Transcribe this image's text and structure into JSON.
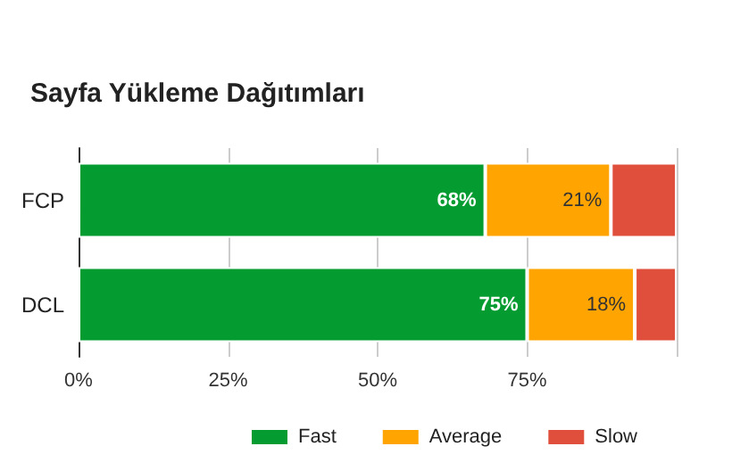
{
  "chart_data": {
    "type": "bar",
    "orientation": "horizontal",
    "stacked": true,
    "title": "Sayfa Yükleme Dağıtımları",
    "categories": [
      "FCP",
      "DCL"
    ],
    "series": [
      {
        "name": "Fast",
        "color": "#049c31",
        "values": [
          68,
          75
        ],
        "value_labels": [
          "68%",
          "75%"
        ]
      },
      {
        "name": "Average",
        "color": "#ffa400",
        "values": [
          21,
          18
        ],
        "value_labels": [
          "21%",
          "18%"
        ]
      },
      {
        "name": "Slow",
        "color": "#e04e3c",
        "values": [
          11,
          7
        ],
        "value_labels": [
          null,
          null
        ]
      }
    ],
    "xlim": [
      0,
      100
    ],
    "xticks": [
      {
        "value": 0,
        "label": "0%"
      },
      {
        "value": 25,
        "label": "25%"
      },
      {
        "value": 50,
        "label": "50%"
      },
      {
        "value": 75,
        "label": "75%"
      },
      {
        "value": 100,
        "label": null
      }
    ],
    "grid": "x",
    "legend": "bottom right"
  }
}
